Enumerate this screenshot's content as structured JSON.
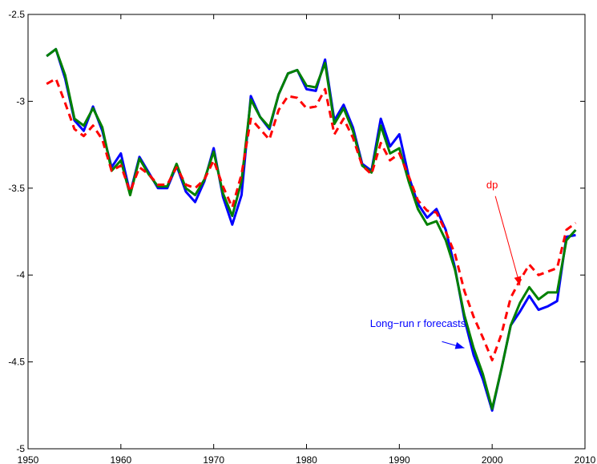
{
  "chart_data": {
    "type": "line",
    "title": "",
    "xlabel": "",
    "ylabel": "",
    "xlim": [
      1950,
      2010
    ],
    "ylim": [
      -5,
      -2.5
    ],
    "grid": false,
    "x_ticks": [
      1950,
      1960,
      1970,
      1980,
      1990,
      2000,
      2010
    ],
    "x_tick_labels": [
      "1950",
      "1960",
      "1970",
      "1980",
      "1990",
      "2000",
      "2010"
    ],
    "y_ticks": [
      -2.5,
      -3,
      -3.5,
      -4,
      -4.5,
      -5
    ],
    "y_tick_labels": [
      "-2.5",
      "-3",
      "-3.5",
      "-4",
      "-4.5",
      "-5"
    ],
    "x": [
      1952,
      1953,
      1954,
      1955,
      1956,
      1957,
      1958,
      1959,
      1960,
      1961,
      1962,
      1963,
      1964,
      1965,
      1966,
      1967,
      1968,
      1969,
      1970,
      1971,
      1972,
      1973,
      1974,
      1975,
      1976,
      1977,
      1978,
      1979,
      1980,
      1981,
      1982,
      1983,
      1984,
      1985,
      1986,
      1987,
      1988,
      1989,
      1990,
      1991,
      1992,
      1993,
      1994,
      1995,
      1996,
      1997,
      1998,
      1999,
      2000,
      2001,
      2002,
      2003,
      2004,
      2005,
      2006,
      2007,
      2008,
      2009
    ],
    "series": [
      {
        "color": "#0000ff",
        "style": "solid",
        "values": [
          -2.74,
          -2.7,
          -2.87,
          -3.11,
          -3.17,
          -3.03,
          -3.17,
          -3.38,
          -3.3,
          -3.53,
          -3.32,
          -3.41,
          -3.5,
          -3.5,
          -3.37,
          -3.52,
          -3.58,
          -3.46,
          -3.27,
          -3.55,
          -3.71,
          -3.54,
          -2.97,
          -3.09,
          -3.16,
          -2.96,
          -2.84,
          -2.82,
          -2.93,
          -2.94,
          -2.76,
          -3.11,
          -3.02,
          -3.15,
          -3.36,
          -3.4,
          -3.1,
          -3.26,
          -3.19,
          -3.43,
          -3.59,
          -3.67,
          -3.62,
          -3.74,
          -3.96,
          -4.25,
          -4.46,
          -4.6,
          -4.78,
          -4.54,
          -4.29,
          -4.21,
          -4.12,
          -4.2,
          -4.18,
          -4.15,
          -3.78,
          -3.77
        ]
      },
      {
        "color": "#008000",
        "style": "solid",
        "values": [
          -2.74,
          -2.7,
          -2.85,
          -3.1,
          -3.14,
          -3.04,
          -3.15,
          -3.4,
          -3.34,
          -3.54,
          -3.33,
          -3.42,
          -3.49,
          -3.49,
          -3.36,
          -3.5,
          -3.54,
          -3.45,
          -3.29,
          -3.53,
          -3.66,
          -3.46,
          -2.99,
          -3.09,
          -3.15,
          -2.96,
          -2.84,
          -2.82,
          -2.91,
          -2.92,
          -2.78,
          -3.13,
          -3.04,
          -3.17,
          -3.37,
          -3.41,
          -3.14,
          -3.3,
          -3.27,
          -3.46,
          -3.62,
          -3.71,
          -3.69,
          -3.8,
          -3.97,
          -4.23,
          -4.42,
          -4.57,
          -4.77,
          -4.54,
          -4.29,
          -4.16,
          -4.07,
          -4.14,
          -4.1,
          -4.1,
          -3.8,
          -3.74
        ]
      },
      {
        "name": "dp",
        "color": "#ff0000",
        "style": "dashed",
        "values": [
          -2.9,
          -2.87,
          -3.01,
          -3.16,
          -3.2,
          -3.14,
          -3.22,
          -3.4,
          -3.37,
          -3.52,
          -3.38,
          -3.42,
          -3.48,
          -3.48,
          -3.38,
          -3.48,
          -3.5,
          -3.45,
          -3.34,
          -3.49,
          -3.61,
          -3.42,
          -3.1,
          -3.16,
          -3.22,
          -3.05,
          -2.97,
          -2.98,
          -3.04,
          -3.03,
          -2.93,
          -3.19,
          -3.1,
          -3.21,
          -3.37,
          -3.42,
          -3.24,
          -3.34,
          -3.3,
          -3.43,
          -3.57,
          -3.63,
          -3.64,
          -3.75,
          -3.88,
          -4.09,
          -4.24,
          -4.36,
          -4.49,
          -4.34,
          -4.13,
          -4.03,
          -3.94,
          -4.0,
          -3.98,
          -3.96,
          -3.74,
          -3.7
        ]
      }
    ],
    "annotations": [
      {
        "text": "dp",
        "color": "#ff0000",
        "x": 2000,
        "y": -3.5,
        "arrow_to": [
          2003,
          -4.06
        ]
      },
      {
        "text": "Long−run r forecasts",
        "color": "#0000ff",
        "x": 1992,
        "y": -4.3,
        "arrow_to": [
          1997,
          -4.42
        ]
      }
    ]
  }
}
